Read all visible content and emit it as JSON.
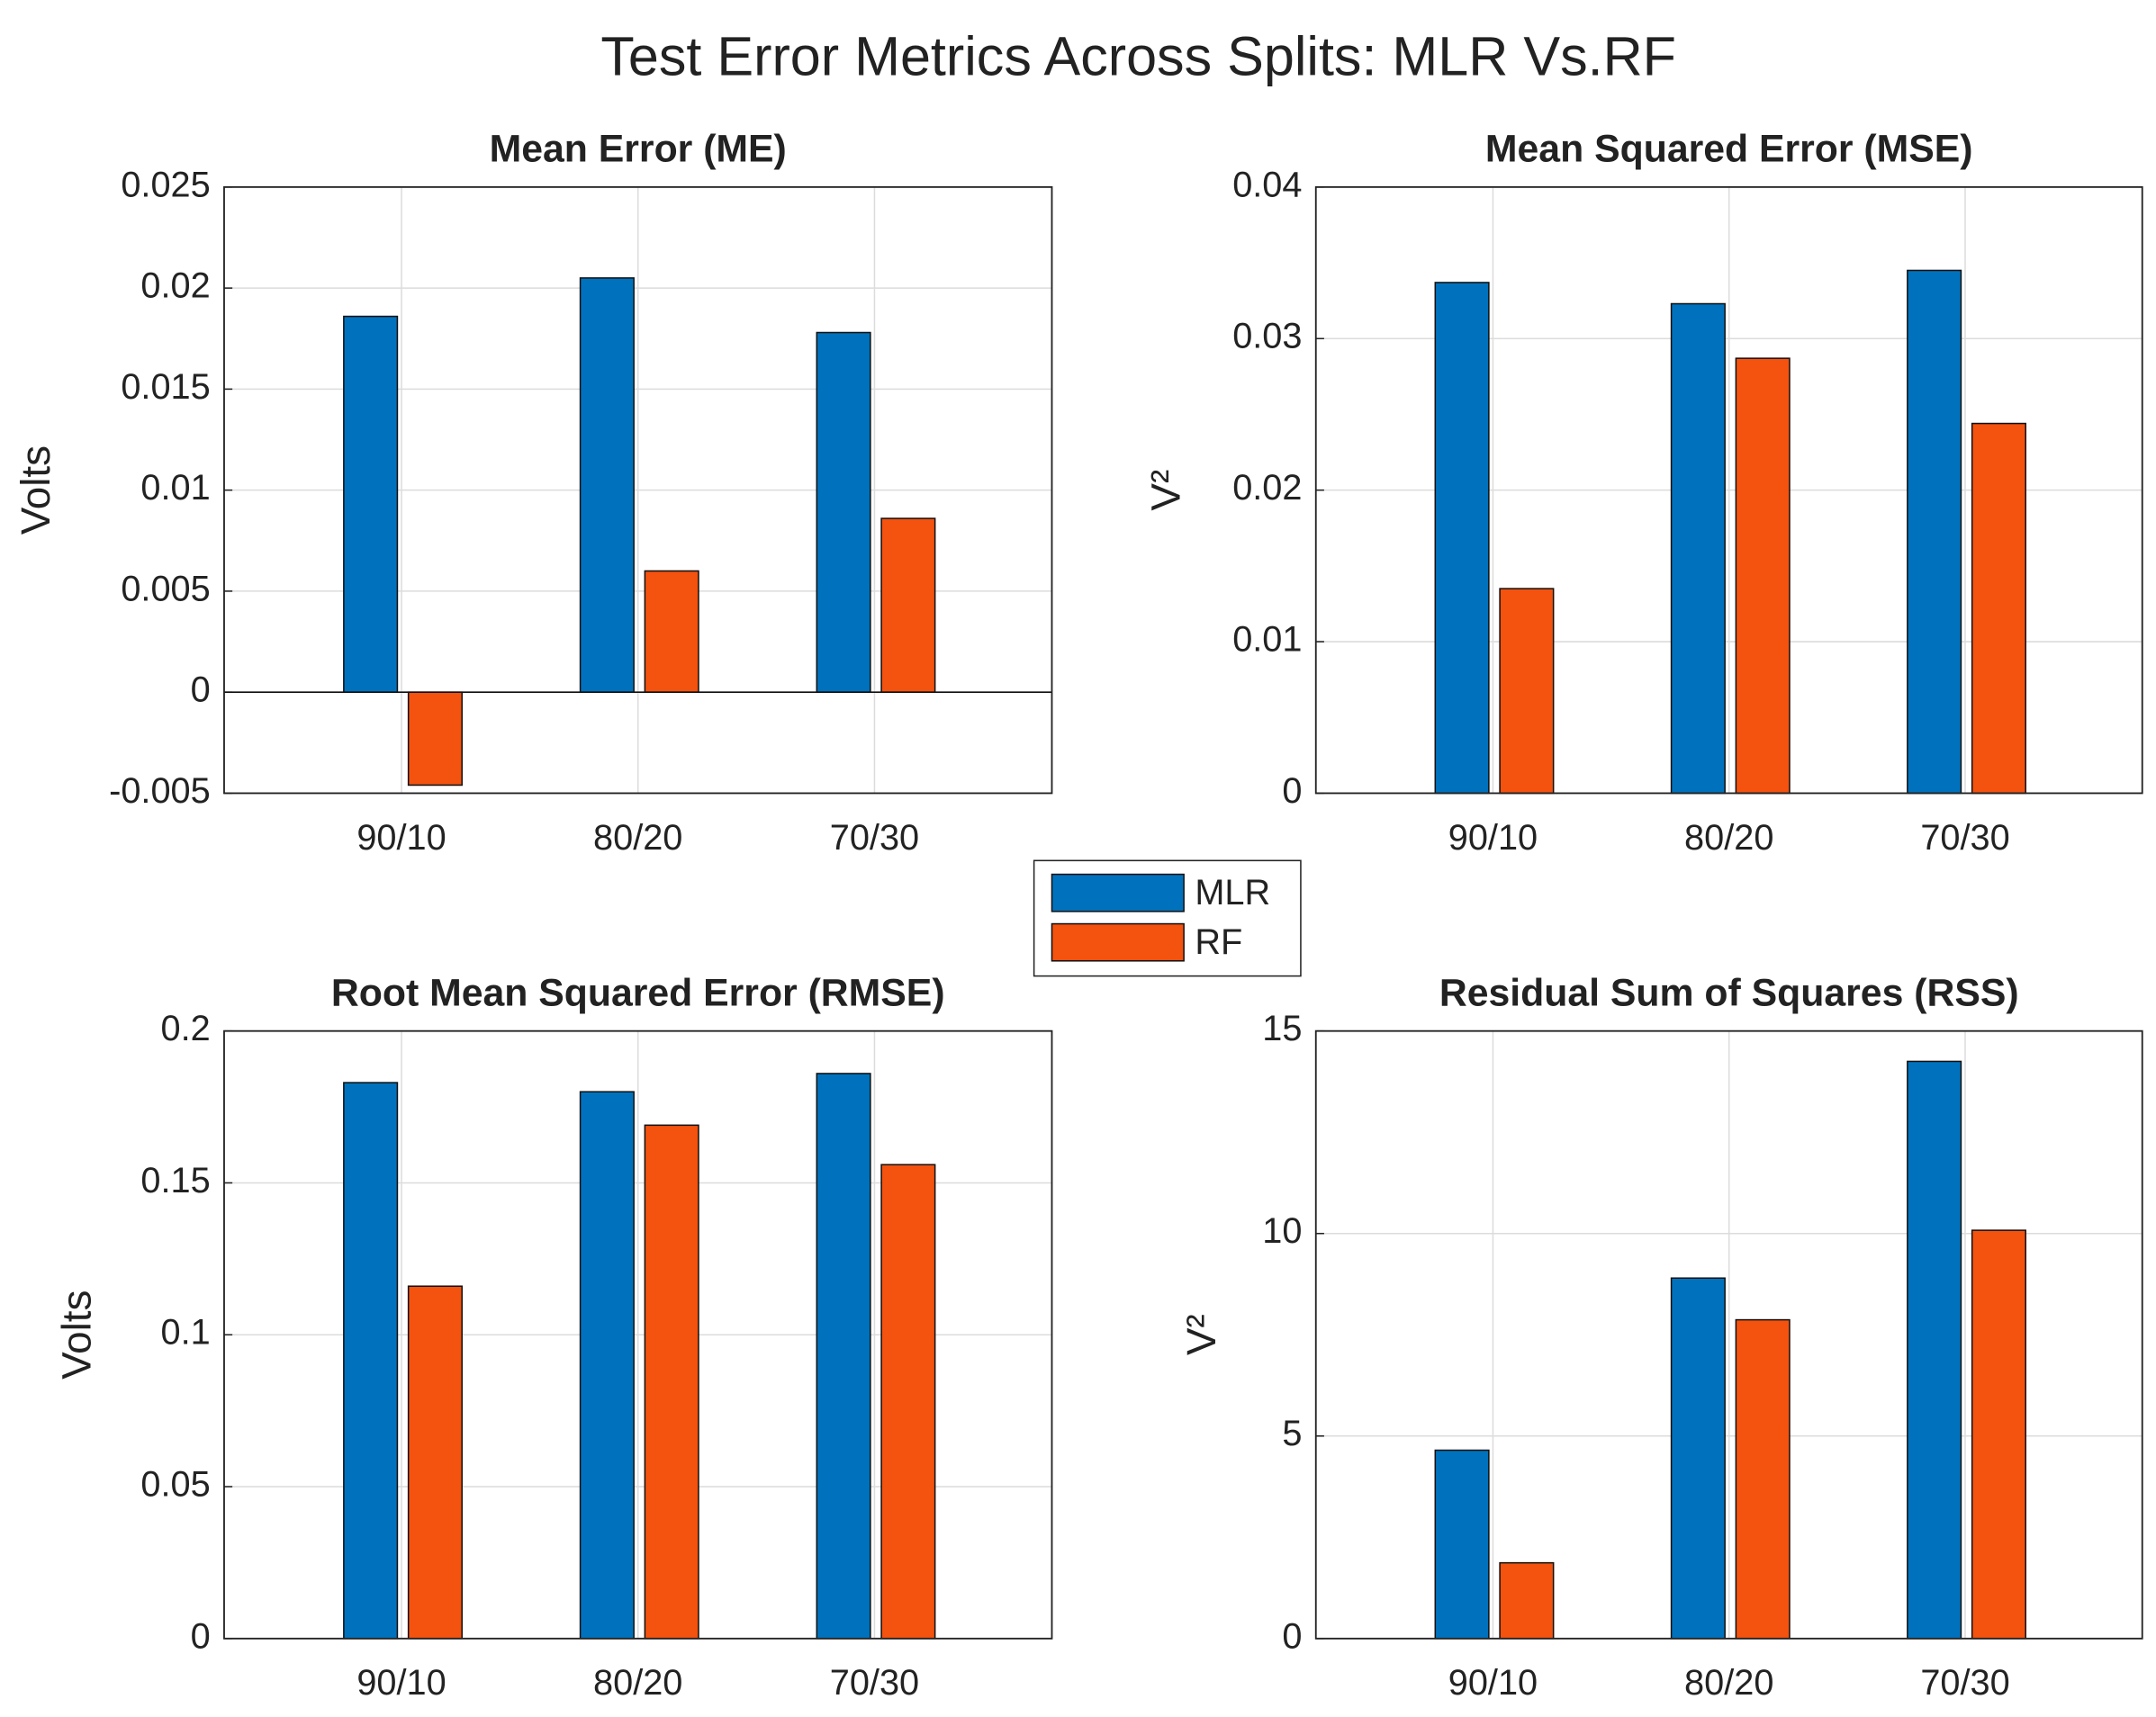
{
  "title": "Test Error Metrics Across Splits: MLR Vs.RF",
  "chart_data": [
    {
      "type": "bar",
      "title": "Mean Error (ME)",
      "y_label": "Volts",
      "categories": [
        "90/10",
        "80/20",
        "70/30"
      ],
      "series": [
        {
          "name": "MLR",
          "color": "#0072bd",
          "values": [
            0.0186,
            0.0205,
            0.0178
          ]
        },
        {
          "name": "RF",
          "color": "#f4520f",
          "values": [
            -0.0046,
            0.006,
            0.0086
          ]
        }
      ],
      "ylim": [
        -0.005,
        0.025
      ],
      "yticks": [
        -0.005,
        0,
        0.005,
        0.01,
        0.015,
        0.02,
        0.025
      ],
      "grid": true
    },
    {
      "type": "bar",
      "title": "Mean Squared Error (MSE)",
      "y_label": "V²",
      "categories": [
        "90/10",
        "80/20",
        "70/30"
      ],
      "series": [
        {
          "name": "MLR",
          "color": "#0072bd",
          "values": [
            0.0337,
            0.0323,
            0.0345
          ]
        },
        {
          "name": "RF",
          "color": "#f4520f",
          "values": [
            0.0135,
            0.0287,
            0.0244
          ]
        }
      ],
      "ylim": [
        0,
        0.04
      ],
      "yticks": [
        0,
        0.01,
        0.02,
        0.03,
        0.04
      ],
      "grid": true
    },
    {
      "type": "bar",
      "title": "Root Mean Squared Error (RMSE)",
      "y_label": "Volts",
      "categories": [
        "90/10",
        "80/20",
        "70/30"
      ],
      "series": [
        {
          "name": "MLR",
          "color": "#0072bd",
          "values": [
            0.183,
            0.18,
            0.186
          ]
        },
        {
          "name": "RF",
          "color": "#f4520f",
          "values": [
            0.116,
            0.169,
            0.156
          ]
        }
      ],
      "ylim": [
        0,
        0.2
      ],
      "yticks": [
        0,
        0.05,
        0.1,
        0.15,
        0.2
      ],
      "grid": true
    },
    {
      "type": "bar",
      "title": "Residual Sum of Squares (RSS)",
      "y_label": "V²",
      "categories": [
        "90/10",
        "80/20",
        "70/30"
      ],
      "series": [
        {
          "name": "MLR",
          "color": "#0072bd",
          "values": [
            4.65,
            8.9,
            14.25
          ]
        },
        {
          "name": "RF",
          "color": "#f4520f",
          "values": [
            1.87,
            7.87,
            10.08
          ]
        }
      ],
      "ylim": [
        0,
        15
      ],
      "yticks": [
        0,
        5,
        10,
        15
      ],
      "grid": true
    }
  ]
}
